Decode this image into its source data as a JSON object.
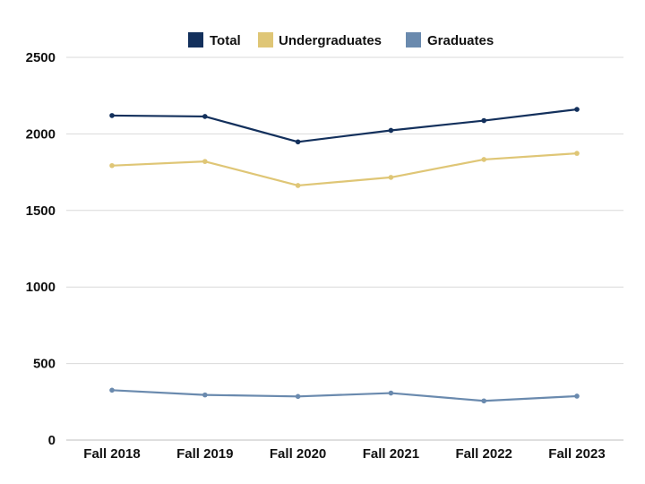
{
  "chart_data": {
    "type": "line",
    "title": "",
    "xlabel": "",
    "ylabel": "",
    "categories": [
      "Fall 2018",
      "Fall 2019",
      "Fall 2020",
      "Fall 2021",
      "Fall 2022",
      "Fall 2023"
    ],
    "ylim": [
      0,
      2500
    ],
    "yticks": [
      0,
      500,
      1000,
      1500,
      2000,
      2500
    ],
    "grid": true,
    "legend_position": "top-center",
    "series": [
      {
        "name": "Total",
        "color": "#13305c",
        "values": [
          2120,
          2114,
          1948,
          2023,
          2087,
          2160
        ]
      },
      {
        "name": "Undergraduates",
        "color": "#dfc676",
        "values": [
          1793,
          1820,
          1663,
          1716,
          1833,
          1873
        ]
      },
      {
        "name": "Graduates",
        "color": "#6a8aae",
        "values": [
          326,
          295,
          285,
          307,
          256,
          287
        ]
      }
    ]
  }
}
